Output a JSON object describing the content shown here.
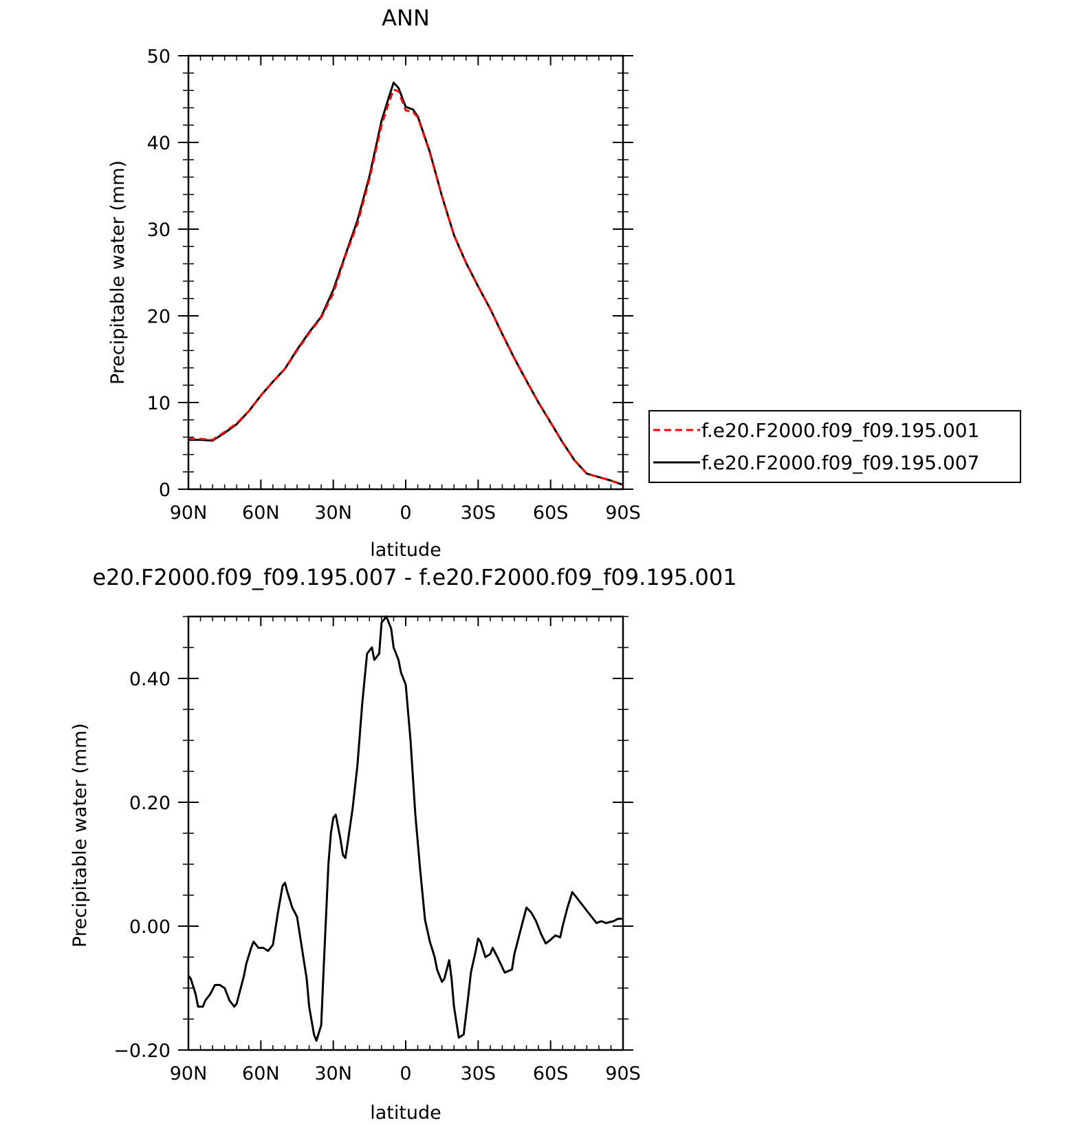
{
  "chart_data": [
    {
      "type": "line",
      "title": "ANN",
      "xlabel": "latitude",
      "ylabel": "Precipitable water (mm)",
      "xlim": [
        90,
        -90
      ],
      "ylim": [
        0,
        50
      ],
      "x_tick_labels": [
        "90N",
        "60N",
        "30N",
        "0",
        "30S",
        "60S",
        "90S"
      ],
      "y_tick_labels": [
        "0",
        "10",
        "20",
        "30",
        "40",
        "50"
      ],
      "legend_position": "right",
      "series": [
        {
          "name": "f.e20.F2000.f09_f09.195.001",
          "color": "#ff0000",
          "style": "dashed",
          "x": [
            90,
            85,
            80,
            75,
            70,
            65,
            60,
            55,
            50,
            45,
            40,
            35,
            30,
            25,
            20,
            15,
            10,
            7,
            5,
            3,
            0,
            -3,
            -5,
            -10,
            -15,
            -20,
            -25,
            -30,
            -35,
            -40,
            -45,
            -50,
            -55,
            -60,
            -65,
            -70,
            -75,
            -80,
            -85,
            -90
          ],
          "y": [
            5.8,
            5.8,
            5.7,
            6.6,
            7.6,
            9.0,
            10.8,
            12.4,
            13.9,
            16.0,
            18.0,
            19.8,
            22.6,
            26.9,
            30.6,
            35.8,
            42.0,
            44.6,
            46.1,
            45.9,
            43.7,
            43.5,
            42.9,
            38.8,
            33.8,
            29.3,
            26.1,
            23.4,
            20.8,
            17.9,
            15.1,
            12.5,
            10.0,
            7.7,
            5.4,
            3.3,
            1.8,
            1.4,
            1.0,
            0.5
          ]
        },
        {
          "name": "f.e20.F2000.f09_f09.195.007",
          "color": "#000000",
          "style": "solid",
          "x": [
            90,
            85,
            80,
            75,
            70,
            65,
            60,
            55,
            50,
            45,
            40,
            35,
            30,
            25,
            20,
            15,
            10,
            7,
            5,
            3,
            0,
            -3,
            -5,
            -10,
            -15,
            -20,
            -25,
            -30,
            -35,
            -40,
            -45,
            -50,
            -55,
            -60,
            -65,
            -70,
            -75,
            -80,
            -85,
            -90
          ],
          "y": [
            5.7,
            5.7,
            5.6,
            6.5,
            7.5,
            9.0,
            10.8,
            12.4,
            13.9,
            16.1,
            18.1,
            19.9,
            23.0,
            27.0,
            31.0,
            36.1,
            42.5,
            45.2,
            46.9,
            46.3,
            44.1,
            43.8,
            43.0,
            38.9,
            33.8,
            29.3,
            26.1,
            23.4,
            20.8,
            17.9,
            15.1,
            12.5,
            10.0,
            7.7,
            5.4,
            3.3,
            1.8,
            1.4,
            1.0,
            0.5
          ]
        }
      ]
    },
    {
      "type": "line",
      "title": "e20.F2000.f09_f09.195.007 - f.e20.F2000.f09_f09.195.001",
      "xlabel": "latitude",
      "ylabel": "Precipitable water (mm)",
      "xlim": [
        90,
        -90
      ],
      "ylim": [
        -0.2,
        0.5
      ],
      "x_tick_labels": [
        "90N",
        "60N",
        "30N",
        "0",
        "30S",
        "60S",
        "90S"
      ],
      "y_tick_labels": [
        "−0.20",
        "0.00",
        "0.20",
        "0.40"
      ],
      "series": [
        {
          "color": "#000000",
          "style": "solid",
          "x": [
            90,
            89,
            87,
            86,
            84,
            83,
            81,
            79,
            77,
            75,
            73,
            71,
            70,
            69,
            67,
            66,
            64,
            63,
            62,
            61,
            59,
            57,
            55,
            53,
            51,
            50,
            49,
            47,
            45,
            43,
            41,
            40,
            38,
            37,
            35,
            34,
            32,
            31,
            30,
            29,
            27,
            26,
            25,
            24,
            22,
            20,
            18,
            16,
            14,
            13,
            11,
            10,
            8,
            6,
            5,
            3,
            2,
            0,
            -2,
            -4,
            -6,
            -8,
            -10,
            -12,
            -13,
            -15,
            -16,
            -18,
            -19,
            -20,
            -22,
            -24,
            -26,
            -27,
            -29,
            -30,
            -31,
            -33,
            -35,
            -36,
            -38,
            -41,
            -44,
            -45,
            -47,
            -48,
            -50,
            -52,
            -54,
            -56,
            -58,
            -60,
            -62,
            -64,
            -65,
            -67,
            -69,
            -71,
            -73,
            -75,
            -77,
            -79,
            -81,
            -83,
            -86,
            -88,
            -90
          ],
          "y": [
            -0.08,
            -0.085,
            -0.11,
            -0.13,
            -0.13,
            -0.12,
            -0.11,
            -0.095,
            -0.095,
            -0.1,
            -0.12,
            -0.13,
            -0.125,
            -0.11,
            -0.08,
            -0.06,
            -0.035,
            -0.025,
            -0.03,
            -0.035,
            -0.035,
            -0.04,
            -0.03,
            0.02,
            0.065,
            0.07,
            0.055,
            0.03,
            0.015,
            -0.035,
            -0.085,
            -0.13,
            -0.175,
            -0.185,
            -0.16,
            -0.07,
            0.1,
            0.15,
            0.175,
            0.18,
            0.14,
            0.115,
            0.11,
            0.135,
            0.19,
            0.26,
            0.36,
            0.44,
            0.45,
            0.43,
            0.44,
            0.49,
            0.5,
            0.48,
            0.45,
            0.43,
            0.41,
            0.39,
            0.3,
            0.18,
            0.09,
            0.01,
            -0.025,
            -0.05,
            -0.07,
            -0.09,
            -0.085,
            -0.055,
            -0.085,
            -0.13,
            -0.18,
            -0.175,
            -0.11,
            -0.075,
            -0.04,
            -0.02,
            -0.025,
            -0.05,
            -0.045,
            -0.035,
            -0.05,
            -0.075,
            -0.07,
            -0.045,
            -0.015,
            0.0,
            0.03,
            0.022,
            0.008,
            -0.012,
            -0.028,
            -0.022,
            -0.015,
            -0.018,
            0.0,
            0.03,
            0.055,
            0.045,
            0.035,
            0.025,
            0.015,
            0.005,
            0.008,
            0.005,
            0.008,
            0.012,
            0.012
          ]
        }
      ]
    }
  ]
}
